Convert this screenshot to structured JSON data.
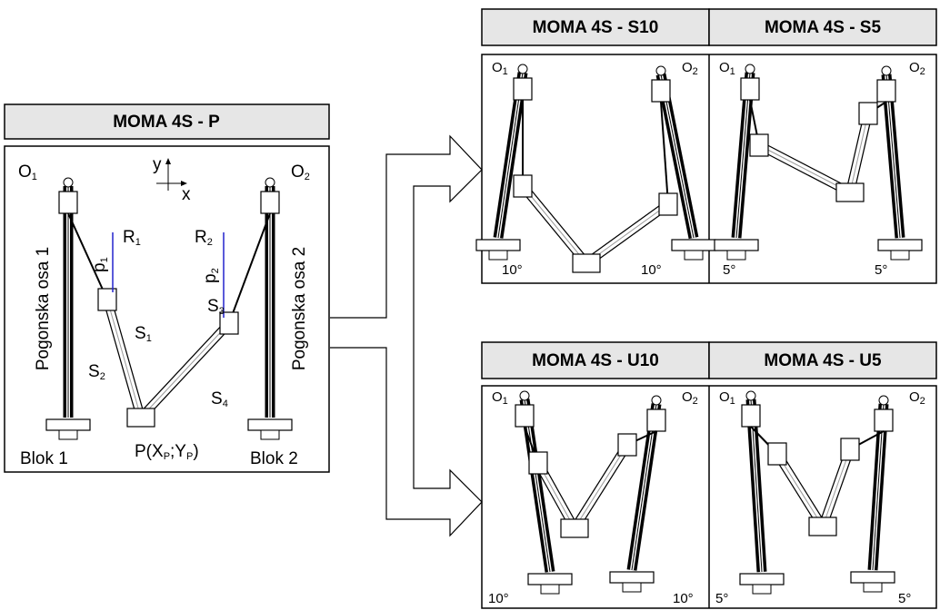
{
  "main": {
    "header": "MOMA 4S - P",
    "axis_y": "y",
    "axis_x": "x",
    "o1": {
      "base": "O",
      "sub": "1"
    },
    "o2": {
      "base": "O",
      "sub": "2"
    },
    "r1": {
      "base": "R",
      "sub": "1"
    },
    "r2": {
      "base": "R",
      "sub": "2"
    },
    "p1": {
      "base": "p",
      "sub": "1"
    },
    "p2": {
      "base": "p",
      "sub": "2"
    },
    "s1": {
      "base": "S",
      "sub": "1"
    },
    "s2": {
      "base": "S",
      "sub": "2"
    },
    "s3": {
      "base": "S",
      "sub": "3"
    },
    "s4": {
      "base": "S",
      "sub": "4"
    },
    "axis_left": "Pogonska osa 1",
    "axis_right": "Pogonska osa 2",
    "block_left": "Blok 1",
    "block_right": "Blok 2",
    "platform": [
      "P(X",
      "P",
      ";Y",
      "P",
      ")"
    ]
  },
  "variants": [
    {
      "header": "MOMA 4S - S10",
      "o1": {
        "base": "O",
        "sub": "1"
      },
      "o2": {
        "base": "O",
        "sub": "2"
      },
      "angle_left": "10°",
      "angle_right": "10°"
    },
    {
      "header": "MOMA 4S - S5",
      "o1": {
        "base": "O",
        "sub": "1"
      },
      "o2": {
        "base": "O",
        "sub": "2"
      },
      "angle_left": "5°",
      "angle_right": "5°"
    },
    {
      "header": "MOMA 4S - U10",
      "o1": {
        "base": "O",
        "sub": "1"
      },
      "o2": {
        "base": "O",
        "sub": "2"
      },
      "angle_left": "10°",
      "angle_right": "10°"
    },
    {
      "header": "MOMA 4S - U5",
      "o1": {
        "base": "O",
        "sub": "1"
      },
      "o2": {
        "base": "O",
        "sub": "2"
      },
      "angle_left": "5°",
      "angle_right": "5°"
    }
  ]
}
